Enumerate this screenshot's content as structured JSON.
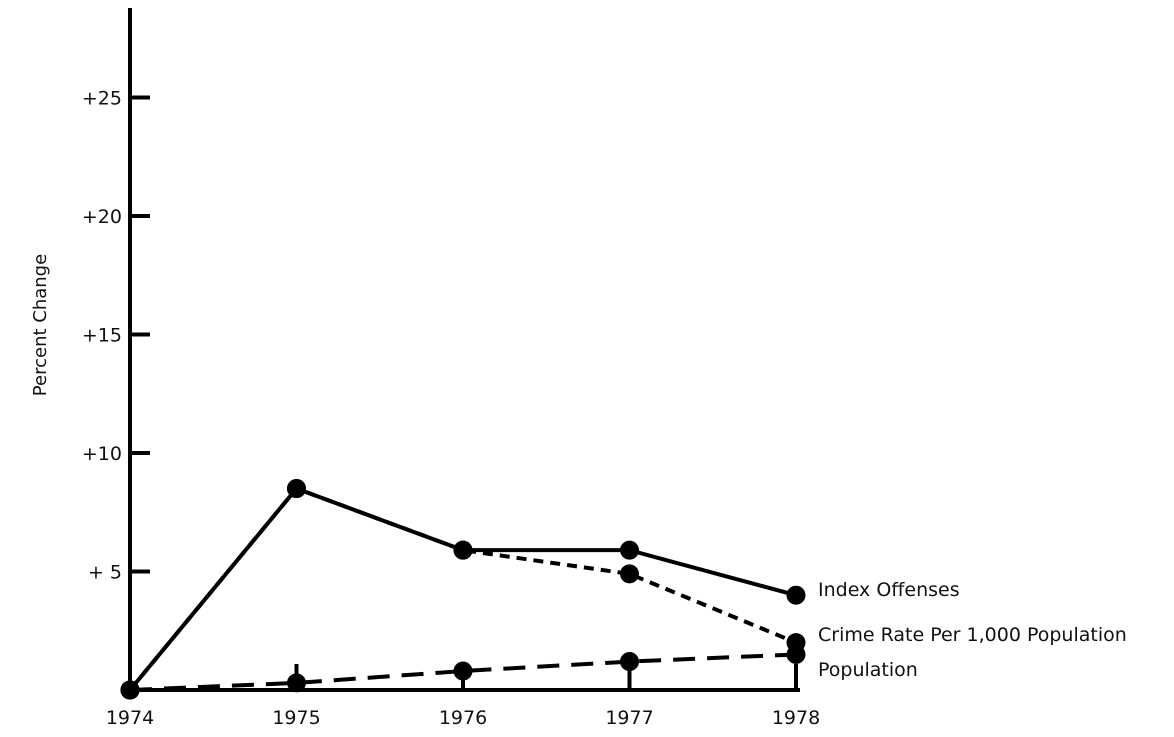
{
  "chart_data": {
    "type": "line",
    "title": "",
    "xlabel": "",
    "ylabel": "Percent Change",
    "categories": [
      "1974",
      "1975",
      "1976",
      "1977",
      "1978"
    ],
    "ylim": [
      0,
      28
    ],
    "yticks": [
      5,
      10,
      15,
      20,
      25
    ],
    "ytick_labels": [
      "+ 5",
      "+10",
      "+15",
      "+20",
      "+25"
    ],
    "grid": false,
    "legend": "end-of-line labels",
    "series": [
      {
        "name": "Index Offenses",
        "style": "solid",
        "values": [
          0,
          8.5,
          5.9,
          5.9,
          4.0
        ]
      },
      {
        "name": "Crime Rate Per 1,000 Population",
        "style": "dashed",
        "values": [
          0,
          8.5,
          5.9,
          4.9,
          2.0
        ]
      },
      {
        "name": "Population",
        "style": "long-dashed",
        "values": [
          0,
          0.3,
          0.8,
          1.2,
          1.5
        ]
      }
    ]
  }
}
